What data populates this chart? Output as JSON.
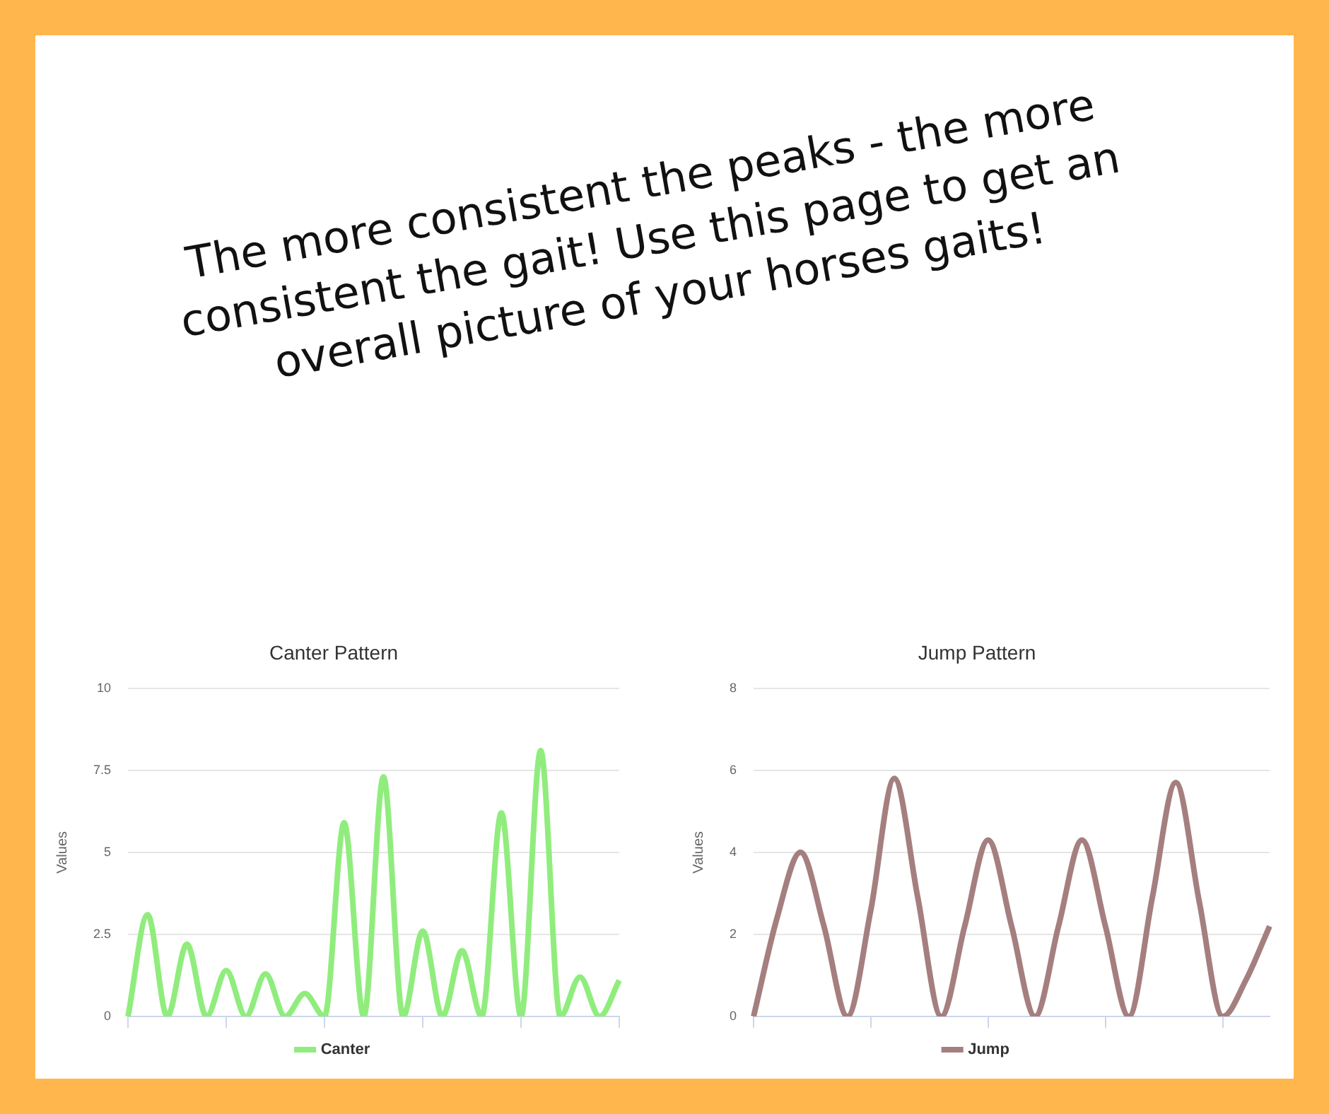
{
  "chart_data": [
    {
      "type": "other",
      "title": "The more consistent the peaks - the more consistent the gait! Use this page to get an overall picture of your horses gaits!"
    },
    {
      "type": "line",
      "title": "Canter Pattern",
      "ylabel": "Values",
      "categories": [
        null,
        null,
        null,
        null,
        null,
        null,
        null,
        null,
        null,
        null,
        null,
        null,
        null,
        null,
        null,
        null,
        null,
        null,
        null,
        null,
        null,
        null,
        null,
        null,
        null,
        null
      ],
      "series": [
        {
          "name": "Canter",
          "color": "#90ed7d",
          "values": [
            0,
            3.1,
            0,
            2.2,
            0,
            1.4,
            0,
            1.3,
            0,
            0.7,
            0,
            5.9,
            0,
            7.3,
            0,
            2.6,
            0,
            2.0,
            0,
            6.2,
            0,
            8.1,
            0,
            1.2,
            0,
            1.1
          ]
        }
      ],
      "ylim": [
        0,
        10
      ],
      "yticks": [
        0,
        2.5,
        5,
        7.5,
        10
      ],
      "grid": "y",
      "legend": "bottom",
      "marker": "none",
      "tick_labels": "y"
    },
    {
      "type": "line",
      "title": "Jump Pattern",
      "ylabel": "Values",
      "categories": [
        null,
        null,
        null,
        null,
        null,
        null,
        null,
        null,
        null,
        null,
        null,
        null,
        null,
        null,
        null,
        null,
        null,
        null,
        null,
        null,
        null,
        null,
        null
      ],
      "series": [
        {
          "name": "Jump",
          "color": "#a57f7f",
          "values": [
            0,
            2.4,
            4.0,
            2.2,
            0,
            2.6,
            5.8,
            2.9,
            0,
            2.2,
            4.3,
            2.2,
            0,
            2.2,
            4.3,
            2.2,
            0,
            2.9,
            5.7,
            2.8,
            0,
            0.9,
            2.2
          ]
        }
      ],
      "ylim": [
        0,
        8
      ],
      "yticks": [
        0,
        2,
        4,
        6,
        8
      ],
      "grid": "y",
      "legend": "bottom",
      "marker": "none",
      "tick_labels": "y"
    }
  ]
}
